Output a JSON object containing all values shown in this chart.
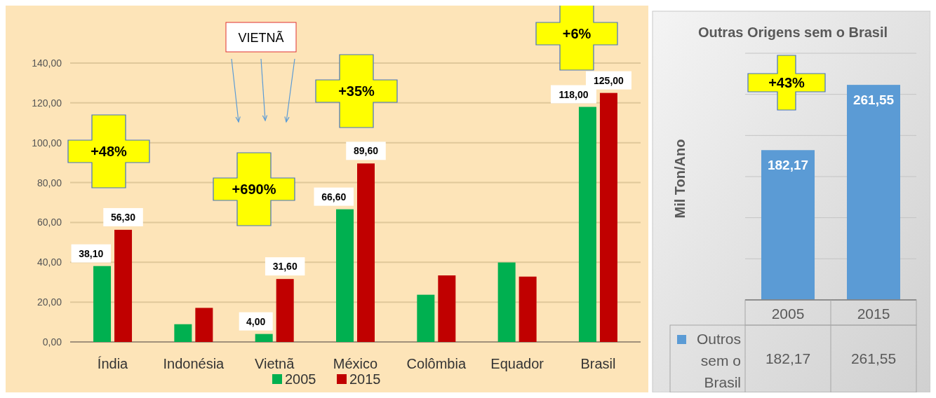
{
  "chart_data": [
    {
      "type": "bar",
      "categories": [
        "Índia",
        "Indonésia",
        "Vietnã",
        "México",
        "Colômbia",
        "Equador",
        "Brasil"
      ],
      "series": [
        {
          "name": "2005",
          "color": "#00b050",
          "values": [
            38.1,
            8.9,
            4.0,
            66.6,
            23.7,
            39.9,
            118.0
          ],
          "value_labels": [
            "38,10",
            null,
            "4,00",
            "66,60",
            null,
            null,
            "118,00"
          ]
        },
        {
          "name": "2015",
          "color": "#c00000",
          "values": [
            56.3,
            17.1,
            31.6,
            89.6,
            33.4,
            32.8,
            125.0
          ],
          "value_labels": [
            "56,30",
            null,
            "31,60",
            "89,60",
            null,
            null,
            "125,00"
          ]
        }
      ],
      "ylim": [
        0,
        140
      ],
      "yticks": [
        {
          "value": 0,
          "label": "0,00"
        },
        {
          "value": 20,
          "label": "20,00"
        },
        {
          "value": 40,
          "label": "40,00"
        },
        {
          "value": 60,
          "label": "60,00"
        },
        {
          "value": 80,
          "label": "80,00"
        },
        {
          "value": 100,
          "label": "100,00"
        },
        {
          "value": 120,
          "label": "120,00"
        },
        {
          "value": 140,
          "label": "140,00"
        }
      ],
      "grid": "y",
      "legend": "bottom",
      "annotations": [
        "+48%",
        "+690%",
        "+35%",
        "+6%",
        "VIETNÃ"
      ]
    },
    {
      "type": "bar",
      "title": "Outras Origens sem o Brasil",
      "ylabel": "Mil Ton/Ano",
      "categories": [
        "2005",
        "2015"
      ],
      "series": [
        {
          "name": "Outros sem o Brasil",
          "color": "#5b9bd5",
          "values": [
            182.17,
            261.55
          ],
          "value_labels": [
            "182,17",
            "261,55"
          ]
        }
      ],
      "ylim": [
        0,
        300
      ],
      "yticks": [
        {
          "value": 0,
          "label": null
        },
        {
          "value": 50,
          "label": null
        },
        {
          "value": 100,
          "label": null
        },
        {
          "value": 150,
          "label": null
        },
        {
          "value": 200,
          "label": null
        },
        {
          "value": 250,
          "label": null
        },
        {
          "value": 300,
          "label": null
        }
      ],
      "tick_labels": "x",
      "grid": "y",
      "legend": "bottom",
      "annotations": [
        "+43%"
      ]
    }
  ]
}
